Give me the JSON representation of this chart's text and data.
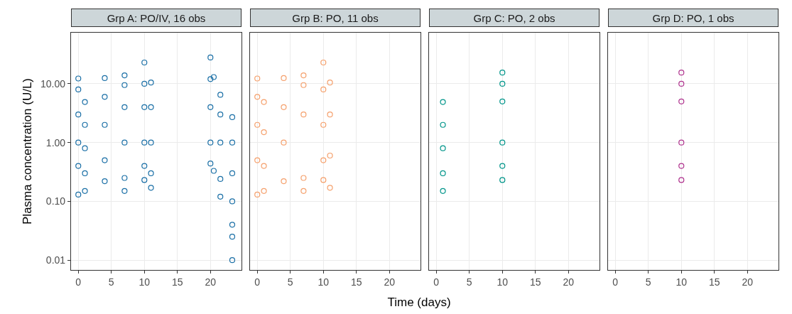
{
  "chart_data": [
    {
      "type": "scatter",
      "title": "Grp A: PO/IV, 16 obs",
      "ylabel": "Plasma concentration (U/L)",
      "log": "y",
      "grid": true,
      "marker": "circle",
      "xlim": [
        -1.1,
        24.7
      ],
      "ylim": [
        0.0068,
        74
      ],
      "xticks": [
        0,
        5,
        10,
        15,
        20
      ],
      "yticks": [
        {
          "value": 0.01,
          "label": "0.01"
        },
        {
          "value": 0.1,
          "label": "0.10"
        },
        {
          "value": 1,
          "label": "1.00"
        },
        {
          "value": 10,
          "label": "10.00"
        }
      ],
      "x": [
        0,
        0,
        0,
        0,
        0,
        0,
        1,
        1,
        1,
        1,
        1,
        4,
        4,
        4,
        4,
        4,
        7,
        7,
        7,
        7,
        7,
        7,
        10,
        10,
        10,
        10,
        10,
        10,
        11,
        11,
        11,
        11,
        11,
        20,
        20,
        20,
        20,
        20,
        20.5,
        20.5,
        21.5,
        21.5,
        21.5,
        21.5,
        21.5,
        23.3,
        23.3,
        23.3,
        23.3,
        23.3,
        23.3,
        23.3
      ],
      "series": [
        {
          "color": "#1a6fa6",
          "values": [
            12.3,
            8,
            3,
            1,
            0.4,
            0.13,
            4.9,
            2,
            0.8,
            0.3,
            0.15,
            12.5,
            6,
            2,
            0.5,
            0.22,
            13.9,
            9.5,
            4,
            1,
            0.25,
            0.15,
            23,
            10,
            4,
            1,
            0.4,
            0.23,
            10.5,
            4,
            1,
            0.3,
            0.17,
            28,
            12,
            4,
            1,
            0.44,
            13,
            0.33,
            6.5,
            3,
            1,
            0.24,
            0.12,
            2.7,
            1,
            0.3,
            0.1,
            0.04,
            0.025,
            0.01
          ]
        }
      ]
    },
    {
      "type": "scatter",
      "title": "Grp B: PO, 11 obs",
      "xlabel": "Time (days)",
      "log": "y",
      "grid": true,
      "marker": "circle",
      "tick_labels": "x",
      "xlim": [
        -1.1,
        24.7
      ],
      "ylim": [
        0.0068,
        74
      ],
      "xticks": [
        0,
        5,
        10,
        15,
        20
      ],
      "x": [
        0,
        0,
        0,
        0,
        0,
        1,
        1,
        1,
        1,
        4,
        4,
        4,
        4,
        7,
        7,
        7,
        7,
        7,
        10,
        10,
        10,
        10,
        10,
        11,
        11,
        11,
        11
      ],
      "series": [
        {
          "color": "#f5a06c",
          "values": [
            12.3,
            6,
            2,
            0.5,
            0.13,
            4.9,
            1.5,
            0.4,
            0.15,
            12.5,
            4,
            1,
            0.22,
            13.9,
            9.5,
            3,
            0.25,
            0.15,
            23,
            8,
            2,
            0.5,
            0.23,
            10.5,
            3,
            0.6,
            0.17
          ]
        }
      ]
    },
    {
      "type": "scatter",
      "title": "Grp C: PO, 2 obs",
      "log": "y",
      "grid": true,
      "marker": "circle",
      "tick_labels": "x",
      "xlim": [
        -1.1,
        24.7
      ],
      "ylim": [
        0.0068,
        74
      ],
      "xticks": [
        0,
        5,
        10,
        15,
        20
      ],
      "x": [
        1,
        1,
        1,
        1,
        1,
        10,
        10,
        10,
        10,
        10,
        10
      ],
      "series": [
        {
          "color": "#00958a",
          "values": [
            4.9,
            2,
            0.8,
            0.3,
            0.15,
            15.5,
            10,
            5,
            1,
            0.4,
            0.23
          ]
        }
      ]
    },
    {
      "type": "scatter",
      "title": "Grp D: PO, 1 obs",
      "log": "y",
      "grid": true,
      "marker": "circle",
      "tick_labels": "x",
      "xlim": [
        -1.1,
        24.7
      ],
      "ylim": [
        0.0068,
        74
      ],
      "xticks": [
        0,
        5,
        10,
        15,
        20
      ],
      "x": [
        10,
        10,
        10,
        10,
        10,
        10
      ],
      "series": [
        {
          "color": "#b0348f",
          "values": [
            15.5,
            10,
            5,
            1,
            0.4,
            0.23
          ]
        }
      ]
    }
  ]
}
